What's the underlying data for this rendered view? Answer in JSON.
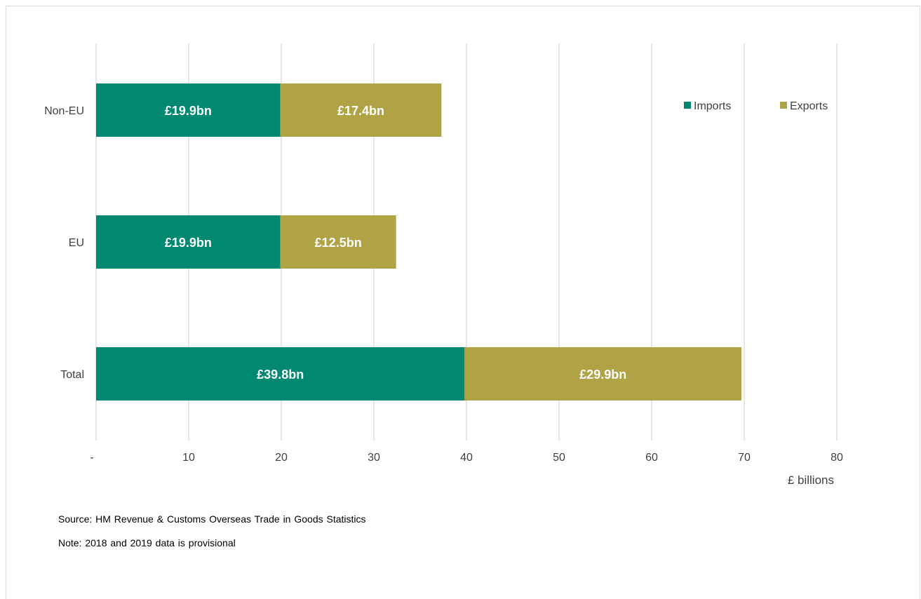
{
  "chart_data": {
    "type": "bar",
    "orientation": "horizontal",
    "stacked": true,
    "categories": [
      "Non-EU",
      "EU",
      "Total"
    ],
    "series": [
      {
        "name": "Imports",
        "color": "#008970",
        "values": [
          19.9,
          19.9,
          39.8
        ],
        "labels": [
          "£19.9bn",
          "£19.9bn",
          "£39.8bn"
        ]
      },
      {
        "name": "Exports",
        "color": "#b0a346",
        "values": [
          17.4,
          12.5,
          29.9
        ],
        "labels": [
          "£17.4bn",
          "£12.5bn",
          "£29.9bn"
        ]
      }
    ],
    "xlim": [
      0,
      80
    ],
    "xticks": [
      0,
      10,
      20,
      30,
      40,
      50,
      60,
      70,
      80
    ],
    "xtick_labels": [
      "-",
      "10",
      "20",
      "30",
      "40",
      "50",
      "60",
      "70",
      "80"
    ],
    "xlabel": "£ billions",
    "grid": "vertical",
    "legend_position": "top-right"
  },
  "footnotes": {
    "source": "Source:  HM Revenue  & Customs Overseas Trade in Goods Statistics",
    "note": "Note: 2018 and 2019 data is provisional"
  }
}
